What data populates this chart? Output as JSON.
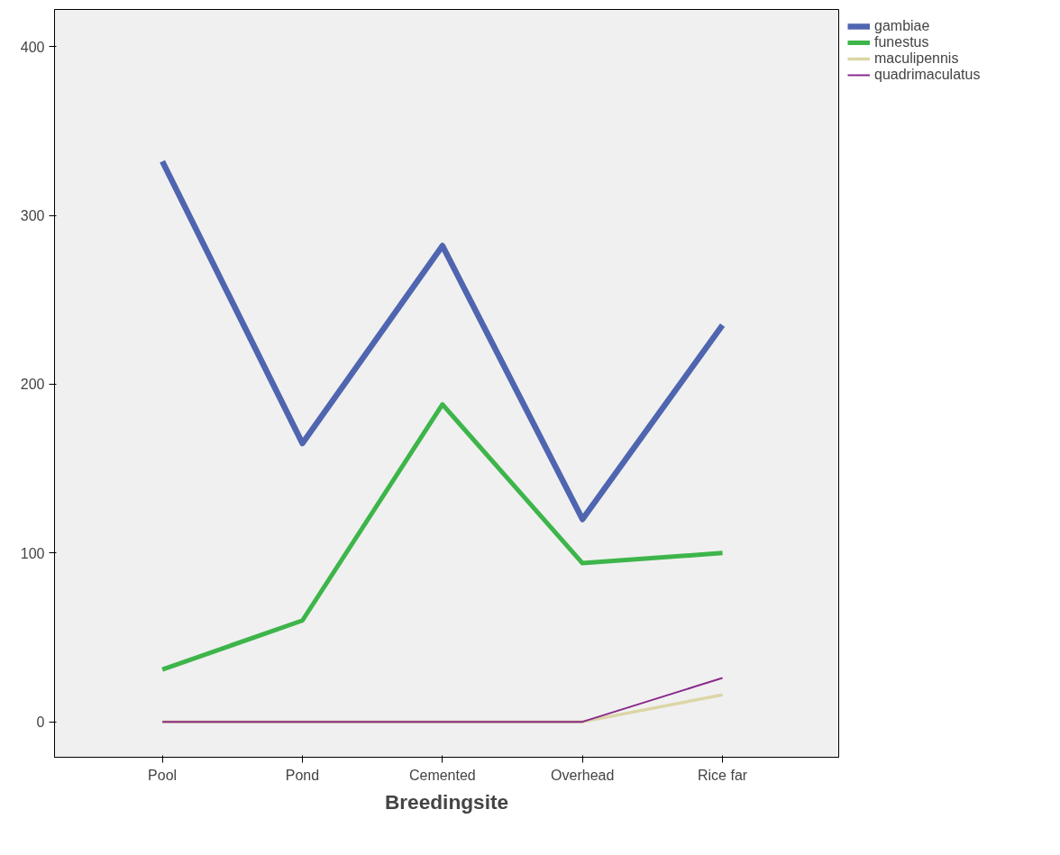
{
  "chart_data": {
    "type": "line",
    "xlabel": "Breedingsite",
    "categories": [
      "Pool",
      "Pond",
      "Cemented",
      "Overhead",
      "Rice far"
    ],
    "series": [
      {
        "name": "gambiae",
        "color": "#4f65b0",
        "values": [
          332,
          165,
          282,
          120,
          235
        ]
      },
      {
        "name": "funestus",
        "color": "#3db54a",
        "values": [
          31,
          60,
          188,
          94,
          100
        ]
      },
      {
        "name": "maculipennis",
        "color": "#dcd6a6",
        "values": [
          0,
          0,
          0,
          0,
          16
        ]
      },
      {
        "name": "quadrimaculatus",
        "color": "#8a2a8c",
        "values": [
          0,
          0,
          0,
          0,
          26
        ]
      }
    ],
    "ylim": [
      -21,
      422
    ],
    "yticks": [
      0,
      100,
      200,
      300,
      400
    ],
    "grid": false,
    "legend": "top right",
    "marker": "none",
    "line_style": "solid"
  }
}
